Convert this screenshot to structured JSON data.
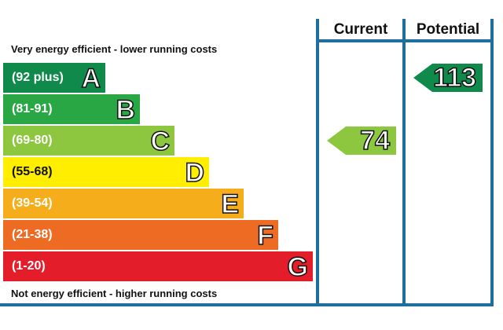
{
  "chart_data": {
    "type": "bar",
    "title": "",
    "headers": {
      "current": "Current",
      "potential": "Potential"
    },
    "top_caption": "Very energy efficient - lower running costs",
    "bottom_caption": "Not energy efficient - higher running costs",
    "bands": [
      {
        "letter": "A",
        "range": "(92 plus)",
        "color": "#0f8a4b"
      },
      {
        "letter": "B",
        "range": "(81-91)",
        "color": "#2aa745"
      },
      {
        "letter": "C",
        "range": "(69-80)",
        "color": "#8dc63f"
      },
      {
        "letter": "D",
        "range": "(55-68)",
        "color": "#ffee00"
      },
      {
        "letter": "E",
        "range": "(39-54)",
        "color": "#f6ad1c"
      },
      {
        "letter": "F",
        "range": "(21-38)",
        "color": "#ed6b23"
      },
      {
        "letter": "G",
        "range": "(1-20)",
        "color": "#e31d2a"
      }
    ],
    "current": {
      "value": "74",
      "band": "C",
      "color": "#8dc63f"
    },
    "potential": {
      "value": "113",
      "band": "A",
      "color": "#0f8a4b"
    }
  }
}
